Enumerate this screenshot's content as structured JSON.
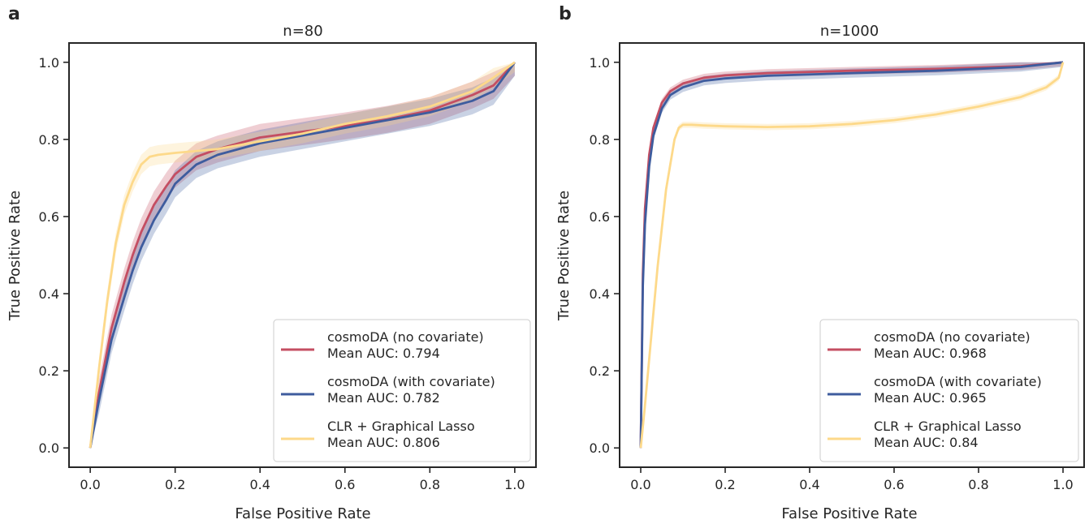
{
  "colors": {
    "no_covariate": "#C44E62",
    "with_covariate": "#3E5C9E",
    "clr_glasso": "#FDD98A",
    "axis": "#262626"
  },
  "chart_data": [
    {
      "panel": "a",
      "type": "line",
      "title": "n=80",
      "xlabel": "False Positive Rate",
      "ylabel": "True Positive Rate",
      "xlim": [
        0.0,
        1.0
      ],
      "ylim": [
        0.0,
        1.0
      ],
      "xticks": [
        "0.0",
        "0.2",
        "0.4",
        "0.6",
        "0.8",
        "1.0"
      ],
      "yticks": [
        "0.0",
        "0.2",
        "0.4",
        "0.6",
        "0.8",
        "1.0"
      ],
      "grid": false,
      "legend_position": "bottom-right",
      "series": [
        {
          "key": "no_covariate",
          "name": "cosmoDA (no covariate)",
          "auc_label": "Mean AUC: 0.794",
          "x": [
            0,
            0.02,
            0.05,
            0.08,
            0.1,
            0.12,
            0.15,
            0.18,
            0.2,
            0.25,
            0.3,
            0.4,
            0.5,
            0.6,
            0.7,
            0.8,
            0.9,
            0.95,
            1.0
          ],
          "y": [
            0,
            0.14,
            0.31,
            0.43,
            0.5,
            0.56,
            0.63,
            0.68,
            0.71,
            0.755,
            0.775,
            0.805,
            0.82,
            0.835,
            0.852,
            0.875,
            0.915,
            0.94,
            1.0
          ],
          "band": 0.035
        },
        {
          "key": "with_covariate",
          "name": "cosmoDA (with covariate)",
          "auc_label": "Mean AUC: 0.782",
          "x": [
            0,
            0.02,
            0.05,
            0.08,
            0.1,
            0.12,
            0.15,
            0.18,
            0.2,
            0.25,
            0.3,
            0.4,
            0.5,
            0.6,
            0.7,
            0.8,
            0.9,
            0.95,
            1.0
          ],
          "y": [
            0,
            0.12,
            0.28,
            0.39,
            0.46,
            0.52,
            0.59,
            0.645,
            0.685,
            0.735,
            0.76,
            0.79,
            0.81,
            0.83,
            0.85,
            0.87,
            0.9,
            0.925,
            1.0
          ],
          "band": 0.035
        },
        {
          "key": "clr_glasso",
          "name": "CLR + Graphical Lasso",
          "auc_label": "Mean AUC: 0.806",
          "x": [
            0,
            0.02,
            0.04,
            0.06,
            0.08,
            0.1,
            0.12,
            0.14,
            0.16,
            0.2,
            0.3,
            0.4,
            0.5,
            0.6,
            0.7,
            0.8,
            0.9,
            0.95,
            1.0
          ],
          "y": [
            0,
            0.2,
            0.38,
            0.53,
            0.63,
            0.69,
            0.735,
            0.755,
            0.76,
            0.765,
            0.775,
            0.795,
            0.815,
            0.84,
            0.86,
            0.885,
            0.925,
            0.96,
            1.0
          ],
          "band": 0.025
        }
      ]
    },
    {
      "panel": "b",
      "type": "line",
      "title": "n=1000",
      "xlabel": "False Positive Rate",
      "ylabel": "True Positive Rate",
      "xlim": [
        0.0,
        1.0
      ],
      "ylim": [
        0.0,
        1.0
      ],
      "xticks": [
        "0.0",
        "0.2",
        "0.4",
        "0.6",
        "0.8",
        "1.0"
      ],
      "yticks": [
        "0.0",
        "0.2",
        "0.4",
        "0.6",
        "0.8",
        "1.0"
      ],
      "grid": false,
      "legend_position": "bottom-right",
      "series": [
        {
          "key": "no_covariate",
          "name": "cosmoDA (no covariate)",
          "auc_label": "Mean AUC: 0.968",
          "x": [
            0,
            0.005,
            0.01,
            0.02,
            0.03,
            0.05,
            0.07,
            0.1,
            0.15,
            0.2,
            0.3,
            0.5,
            0.7,
            0.9,
            1.0
          ],
          "y": [
            0,
            0.45,
            0.62,
            0.76,
            0.83,
            0.895,
            0.925,
            0.945,
            0.96,
            0.966,
            0.972,
            0.978,
            0.983,
            0.99,
            1.0
          ],
          "band": 0.01
        },
        {
          "key": "with_covariate",
          "name": "cosmoDA (with covariate)",
          "auc_label": "Mean AUC: 0.965",
          "x": [
            0,
            0.005,
            0.01,
            0.02,
            0.03,
            0.05,
            0.07,
            0.1,
            0.15,
            0.2,
            0.3,
            0.5,
            0.7,
            0.9,
            1.0
          ],
          "y": [
            0,
            0.42,
            0.58,
            0.73,
            0.81,
            0.88,
            0.915,
            0.935,
            0.952,
            0.958,
            0.965,
            0.972,
            0.978,
            0.988,
            1.0
          ],
          "band": 0.012
        },
        {
          "key": "clr_glasso",
          "name": "CLR + Graphical Lasso",
          "auc_label": "Mean AUC: 0.84",
          "x": [
            0,
            0.01,
            0.02,
            0.04,
            0.06,
            0.08,
            0.09,
            0.1,
            0.12,
            0.15,
            0.2,
            0.3,
            0.4,
            0.5,
            0.6,
            0.7,
            0.8,
            0.9,
            0.96,
            0.99,
            1.0
          ],
          "y": [
            0,
            0.11,
            0.23,
            0.47,
            0.67,
            0.8,
            0.83,
            0.838,
            0.838,
            0.836,
            0.834,
            0.832,
            0.834,
            0.84,
            0.85,
            0.865,
            0.885,
            0.91,
            0.935,
            0.96,
            1.0
          ],
          "band": 0.008
        }
      ]
    }
  ]
}
